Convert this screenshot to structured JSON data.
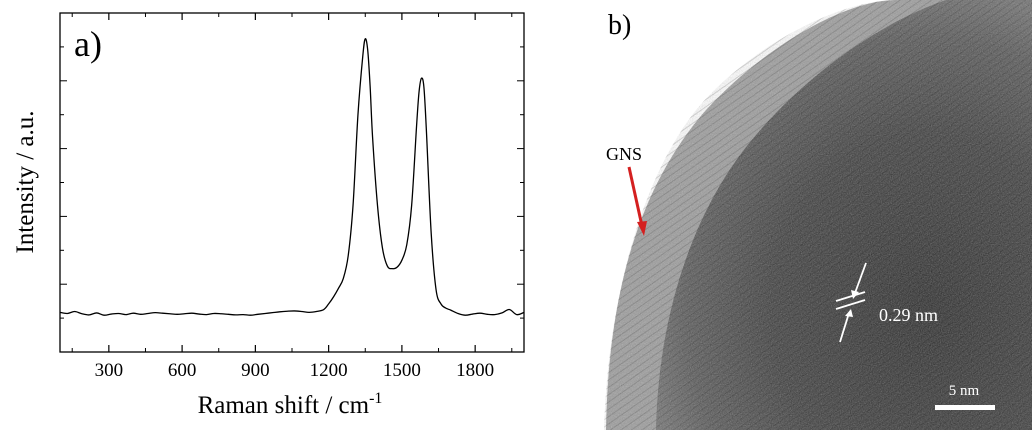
{
  "chart_data": {
    "type": "line",
    "panel_label": "a)",
    "xlabel": "Raman shift / cm",
    "xlabel_superscript": "-1",
    "ylabel": "Intensity / a.u.",
    "xlim": [
      100,
      2000
    ],
    "ylim": [
      0,
      100
    ],
    "xticks": [
      "300",
      "600",
      "900",
      "1200",
      "1500",
      "1800"
    ],
    "series": [
      {
        "x": [
          100,
          130,
          160,
          190,
          220,
          250,
          280,
          310,
          340,
          370,
          400,
          430,
          460,
          490,
          520,
          550,
          580,
          610,
          640,
          670,
          700,
          730,
          760,
          790,
          820,
          850,
          880,
          910,
          940,
          970,
          1000,
          1030,
          1060,
          1090,
          1120,
          1150,
          1180,
          1200,
          1220,
          1240,
          1260,
          1280,
          1300,
          1320,
          1340,
          1350,
          1360,
          1370,
          1380,
          1400,
          1420,
          1440,
          1460,
          1480,
          1500,
          1520,
          1540,
          1560,
          1570,
          1580,
          1590,
          1600,
          1620,
          1640,
          1660,
          1680,
          1700,
          1730,
          1760,
          1790,
          1820,
          1850,
          1880,
          1910,
          1940,
          1970,
          2000
        ],
        "y": [
          2.0,
          1.6,
          2.3,
          1.5,
          1.1,
          1.8,
          1.0,
          1.4,
          1.6,
          1.2,
          1.7,
          1.3,
          1.6,
          1.9,
          1.7,
          1.5,
          1.3,
          1.5,
          1.7,
          1.4,
          1.2,
          1.6,
          1.5,
          1.3,
          1.1,
          1.2,
          1.0,
          1.3,
          1.6,
          1.9,
          2.2,
          2.4,
          2.5,
          2.3,
          2.0,
          2.3,
          3.0,
          5.0,
          7.5,
          10.5,
          14.0,
          22.0,
          40.0,
          72.0,
          93.0,
          99.0,
          95.0,
          82.0,
          64.0,
          40.0,
          25.0,
          18.5,
          17.5,
          18.0,
          20.5,
          26.0,
          40.0,
          68.0,
          80.0,
          85.0,
          82.0,
          67.0,
          30.0,
          10.0,
          5.0,
          3.5,
          2.8,
          1.6,
          1.0,
          1.4,
          1.7,
          1.3,
          1.2,
          1.8,
          3.0,
          1.2,
          2.0
        ]
      }
    ]
  },
  "tem_image": {
    "panel_label": "b)",
    "gns_label": "GNS",
    "lattice_label": "0.29 nm",
    "scale_bar_label": "5 nm"
  }
}
